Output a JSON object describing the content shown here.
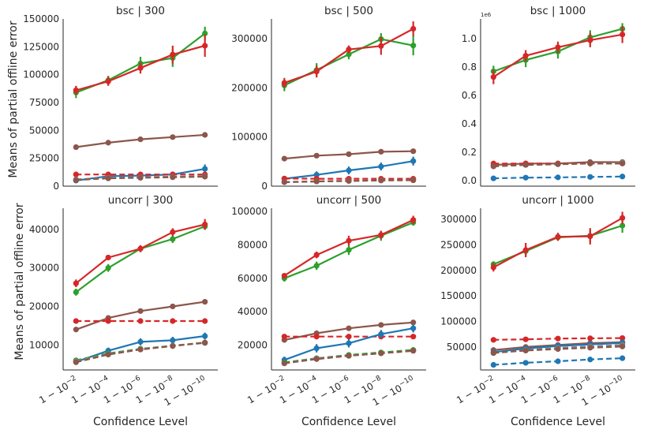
{
  "chart_data": {
    "type": "line",
    "ylabel": "Means of partial offline error",
    "xlabel": "Confidence Level",
    "x": [
      2,
      4,
      6,
      8,
      10
    ],
    "xtick_labels": [
      {
        "base": "1 − 10",
        "exp": "−2"
      },
      {
        "base": "1 − 10",
        "exp": "−4"
      },
      {
        "base": "1 − 10",
        "exp": "−6"
      },
      {
        "base": "1 − 10",
        "exp": "−8"
      },
      {
        "base": "1 − 10",
        "exp": "−10"
      }
    ],
    "xlim": [
      1.2,
      10.8
    ],
    "colors": {
      "blue": "#1f77b4",
      "green": "#2ca02c",
      "red": "#d62728",
      "brown": "#8c564b",
      "grey": "#7f7f7f"
    },
    "panels": [
      {
        "title": "bsc | 300",
        "ylim": [
          0,
          150000
        ],
        "yticks": [
          0,
          25000,
          50000,
          75000,
          100000,
          125000,
          150000
        ],
        "ytick_labels": [
          "0",
          "25000",
          "50000",
          "75000",
          "100000",
          "125000",
          "150000"
        ],
        "offset_text": "",
        "series": [
          {
            "color": "green",
            "dash": false,
            "values": [
              84000,
              95000,
              110000,
              115000,
              137000
            ],
            "err": [
              5000,
              4000,
              6000,
              8000,
              6000
            ]
          },
          {
            "color": "red",
            "dash": false,
            "values": [
              86000,
              94000,
              106000,
              118000,
              126000
            ],
            "err": [
              4000,
              4000,
              5000,
              8000,
              10000
            ]
          },
          {
            "color": "brown",
            "dash": false,
            "values": [
              35000,
              39000,
              42000,
              44000,
              46000
            ],
            "err": [
              800,
              800,
              800,
              800,
              800
            ]
          },
          {
            "color": "blue",
            "dash": false,
            "values": [
              5000,
              9000,
              9500,
              10500,
              15500
            ],
            "err": [
              1500,
              3000,
              2500,
              2500,
              4000
            ]
          },
          {
            "color": "red",
            "dash": true,
            "values": [
              10500,
              10500,
              10500,
              10500,
              10500
            ],
            "err": [
              500,
              500,
              500,
              500,
              500
            ]
          },
          {
            "color": "grey",
            "dash": true,
            "values": [
              6000,
              7500,
              8000,
              8500,
              9000
            ],
            "err": [
              500,
              500,
              500,
              500,
              500
            ]
          },
          {
            "color": "brown",
            "dash": true,
            "values": [
              5500,
              7000,
              7500,
              8000,
              8500
            ],
            "err": [
              500,
              500,
              500,
              500,
              500
            ]
          }
        ]
      },
      {
        "title": "bsc | 500",
        "ylim": [
          0,
          340000
        ],
        "yticks": [
          0,
          100000,
          200000,
          300000
        ],
        "ytick_labels": [
          "0",
          "100000",
          "200000",
          "300000"
        ],
        "offset_text": "",
        "series": [
          {
            "color": "green",
            "dash": false,
            "values": [
              205000,
              236000,
              268000,
              299000,
              286000
            ],
            "err": [
              12000,
              14000,
              10000,
              12000,
              20000
            ]
          },
          {
            "color": "red",
            "dash": false,
            "values": [
              210000,
              233000,
              278000,
              285000,
              320000
            ],
            "err": [
              10000,
              12000,
              8000,
              18000,
              15000
            ]
          },
          {
            "color": "brown",
            "dash": false,
            "values": [
              56000,
              62000,
              65000,
              70000,
              71000
            ],
            "err": [
              1500,
              1500,
              1500,
              1500,
              1500
            ]
          },
          {
            "color": "blue",
            "dash": false,
            "values": [
              15000,
              23000,
              32000,
              40000,
              51000
            ],
            "err": [
              3000,
              7000,
              8000,
              8000,
              9000
            ]
          },
          {
            "color": "red",
            "dash": true,
            "values": [
              15500,
              15000,
              15000,
              15000,
              15000
            ],
            "err": [
              1000,
              1000,
              1000,
              1000,
              1000
            ]
          },
          {
            "color": "grey",
            "dash": true,
            "values": [
              8500,
              10000,
              11000,
              12000,
              12500
            ],
            "err": [
              800,
              800,
              800,
              800,
              800
            ]
          },
          {
            "color": "brown",
            "dash": true,
            "values": [
              8000,
              9500,
              10500,
              11500,
              12000
            ],
            "err": [
              800,
              800,
              800,
              800,
              800
            ]
          }
        ]
      },
      {
        "title": "bsc | 1000",
        "ylim": [
          -0.04,
          1.14
        ],
        "yticks": [
          0.0,
          0.2,
          0.4,
          0.6,
          0.8,
          1.0
        ],
        "ytick_labels": [
          "0.0",
          "0.2",
          "0.4",
          "0.6",
          "0.8",
          "1.0"
        ],
        "offset_text": "1e6",
        "series": [
          {
            "color": "green",
            "dash": false,
            "values": [
              0.77,
              0.85,
              0.91,
              1.01,
              1.07
            ],
            "err": [
              0.04,
              0.05,
              0.05,
              0.05,
              0.04
            ]
          },
          {
            "color": "red",
            "dash": false,
            "values": [
              0.73,
              0.88,
              0.94,
              0.99,
              1.03
            ],
            "err": [
              0.05,
              0.04,
              0.04,
              0.05,
              0.06
            ]
          },
          {
            "color": "brown",
            "dash": false,
            "values": [
              0.11,
              0.12,
              0.12,
              0.13,
              0.13
            ],
            "err": [
              0.005,
              0.005,
              0.005,
              0.005,
              0.005
            ]
          },
          {
            "color": "red",
            "dash": true,
            "values": [
              0.12,
              0.12,
              0.12,
              0.12,
              0.12
            ],
            "err": [
              0.005,
              0.005,
              0.005,
              0.005,
              0.005
            ]
          },
          {
            "color": "grey",
            "dash": true,
            "values": [
              0.1,
              0.11,
              0.115,
              0.12,
              0.125
            ],
            "err": [
              0.005,
              0.005,
              0.005,
              0.005,
              0.005
            ]
          },
          {
            "color": "brown",
            "dash": true,
            "values": [
              0.1,
              0.11,
              0.115,
              0.12,
              0.12
            ],
            "err": [
              0.005,
              0.005,
              0.005,
              0.005,
              0.005
            ]
          },
          {
            "color": "blue",
            "dash": true,
            "values": [
              0.015,
              0.02,
              0.022,
              0.025,
              0.028
            ],
            "err": [
              0.003,
              0.003,
              0.003,
              0.003,
              0.003
            ]
          }
        ]
      },
      {
        "title": "uncorr | 300",
        "ylim": [
          3500,
          45500
        ],
        "yticks": [
          10000,
          20000,
          30000,
          40000
        ],
        "ytick_labels": [
          "10000",
          "20000",
          "30000",
          "40000"
        ],
        "offset_text": "",
        "series": [
          {
            "color": "green",
            "dash": false,
            "values": [
              23700,
              30000,
              35000,
              37500,
              40800
            ],
            "err": [
              900,
              1000,
              900,
              1000,
              900
            ]
          },
          {
            "color": "red",
            "dash": false,
            "values": [
              26000,
              32700,
              35000,
              39300,
              41300
            ],
            "err": [
              1000,
              700,
              900,
              1000,
              1400
            ]
          },
          {
            "color": "brown",
            "dash": false,
            "values": [
              14000,
              17000,
              18800,
              20000,
              21200
            ],
            "err": [
              200,
              200,
              200,
              200,
              200
            ]
          },
          {
            "color": "red",
            "dash": true,
            "values": [
              16200,
              16200,
              16200,
              16200,
              16200
            ],
            "err": [
              500,
              500,
              500,
              500,
              500
            ]
          },
          {
            "color": "blue",
            "dash": false,
            "values": [
              5600,
              8500,
              10800,
              11200,
              12300
            ],
            "err": [
              600,
              800,
              900,
              900,
              900
            ]
          },
          {
            "color": "green",
            "dash": true,
            "values": [
              6000,
              7800,
              9000,
              9800,
              10600
            ],
            "err": [
              300,
              300,
              300,
              300,
              300
            ]
          },
          {
            "color": "grey",
            "dash": true,
            "values": [
              5800,
              7600,
              8900,
              9800,
              10500
            ],
            "err": [
              300,
              300,
              300,
              300,
              300
            ]
          },
          {
            "color": "brown",
            "dash": true,
            "values": [
              5500,
              7500,
              8800,
              9700,
              10600
            ],
            "err": [
              300,
              300,
              300,
              300,
              300
            ]
          }
        ]
      },
      {
        "title": "uncorr | 500",
        "ylim": [
          5000,
          102000
        ],
        "yticks": [
          20000,
          40000,
          60000,
          80000,
          100000
        ],
        "ytick_labels": [
          "20000",
          "40000",
          "60000",
          "80000",
          "100000"
        ],
        "offset_text": "",
        "series": [
          {
            "color": "green",
            "dash": false,
            "values": [
              60000,
              67500,
              77000,
              85500,
              93500
            ],
            "err": [
              2000,
              2500,
              3000,
              3000,
              2000
            ]
          },
          {
            "color": "red",
            "dash": false,
            "values": [
              61500,
              74000,
              82500,
              86000,
              95000
            ],
            "err": [
              1500,
              2000,
              3000,
              2500,
              2500
            ]
          },
          {
            "color": "brown",
            "dash": false,
            "values": [
              23000,
              27000,
              30000,
              32000,
              33500
            ],
            "err": [
              500,
              500,
              500,
              500,
              500
            ]
          },
          {
            "color": "red",
            "dash": true,
            "values": [
              25000,
              25000,
              25000,
              25000,
              25000
            ],
            "err": [
              500,
              500,
              500,
              500,
              500
            ]
          },
          {
            "color": "blue",
            "dash": false,
            "values": [
              11000,
              18000,
              21000,
              26500,
              30000
            ],
            "err": [
              2000,
              2500,
              2500,
              2500,
              2500
            ]
          },
          {
            "color": "green",
            "dash": true,
            "values": [
              9500,
              12000,
              14000,
              15500,
              17000
            ],
            "err": [
              500,
              500,
              500,
              500,
              500
            ]
          },
          {
            "color": "grey",
            "dash": true,
            "values": [
              9000,
              12000,
              13500,
              15000,
              16500
            ],
            "err": [
              500,
              500,
              500,
              500,
              500
            ]
          },
          {
            "color": "brown",
            "dash": true,
            "values": [
              9000,
              11500,
              13500,
              15000,
              16500
            ],
            "err": [
              500,
              500,
              500,
              500,
              500
            ]
          }
        ]
      },
      {
        "title": "uncorr | 1000",
        "ylim": [
          5000,
          322000
        ],
        "yticks": [
          50000,
          100000,
          150000,
          200000,
          250000,
          300000
        ],
        "ytick_labels": [
          "50000",
          "100000",
          "150000",
          "200000",
          "250000",
          "300000"
        ],
        "offset_text": "",
        "series": [
          {
            "color": "green",
            "dash": false,
            "values": [
              212000,
              238000,
              265000,
              268000,
              288000
            ],
            "err": [
              6000,
              10000,
              6000,
              12000,
              14000
            ]
          },
          {
            "color": "red",
            "dash": false,
            "values": [
              206000,
              240000,
              266000,
              267000,
              303000
            ],
            "err": [
              8000,
              14000,
              8000,
              16000,
              12000
            ]
          },
          {
            "color": "red",
            "dash": true,
            "values": [
              64000,
              65000,
              66500,
              67000,
              67500
            ],
            "err": [
              1500,
              1500,
              1500,
              1500,
              1500
            ]
          },
          {
            "color": "brown",
            "dash": false,
            "values": [
              44000,
              50000,
              54000,
              57500,
              59500
            ],
            "err": [
              1000,
              1000,
              1000,
              1000,
              1000
            ]
          },
          {
            "color": "blue",
            "dash": false,
            "values": [
              40000,
              47000,
              52000,
              55000,
              58000
            ],
            "err": [
              1000,
              1000,
              1000,
              1000,
              1000
            ]
          },
          {
            "color": "grey",
            "dash": true,
            "values": [
              38000,
              44000,
              48000,
              51000,
              54000
            ],
            "err": [
              800,
              800,
              800,
              800,
              800
            ]
          },
          {
            "color": "brown",
            "dash": true,
            "values": [
              38500,
              43000,
              46000,
              48500,
              51000
            ],
            "err": [
              800,
              800,
              800,
              800,
              800
            ]
          },
          {
            "color": "blue",
            "dash": true,
            "values": [
              15000,
              19000,
              22000,
              25500,
              28000
            ],
            "err": [
              800,
              800,
              800,
              800,
              800
            ]
          }
        ]
      }
    ]
  }
}
